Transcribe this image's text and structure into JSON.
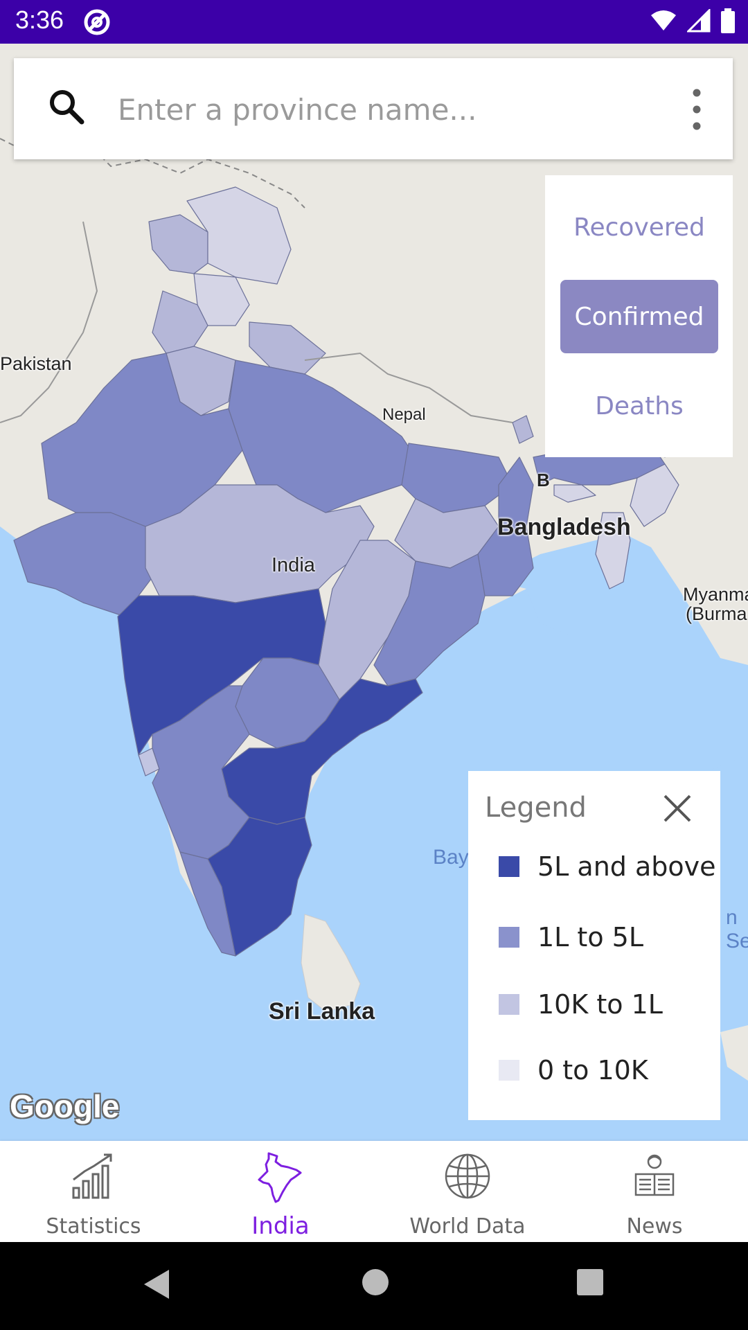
{
  "status_bar": {
    "time": "3:36"
  },
  "search": {
    "placeholder": "Enter a province name..."
  },
  "metric_toggle": {
    "options": [
      "Recovered",
      "Confirmed",
      "Deaths"
    ],
    "selected": "Confirmed"
  },
  "map": {
    "labels": {
      "pakistan": "Pakistan",
      "nepal": "Nepal",
      "india": "India",
      "bangladesh": "Bangladesh",
      "myanmar_1": "Myanma",
      "myanmar_2": "(Burma",
      "sri_lanka": "Sri Lanka",
      "bay": "Bay",
      "sea_fragment": "n Se",
      "bhutan_fragment": "B"
    },
    "provider_logo": "Google"
  },
  "legend": {
    "title": "Legend",
    "items": [
      {
        "label": "5L and above",
        "color": "#3a4aa8"
      },
      {
        "label": "1L to 5L",
        "color": "#8a92cc"
      },
      {
        "label": "10K to 1L",
        "color": "#c2c5e2"
      },
      {
        "label": "0 to 10K",
        "color": "#e8e9f3"
      }
    ]
  },
  "bottom_nav": {
    "items": [
      {
        "label": "Statistics",
        "icon": "bar-chart-icon"
      },
      {
        "label": "India",
        "icon": "india-map-icon"
      },
      {
        "label": "World Data",
        "icon": "globe-icon"
      },
      {
        "label": "News",
        "icon": "newspaper-reader-icon"
      }
    ],
    "active": "India"
  },
  "colors": {
    "status_bar": "#3c00a8",
    "accent": "#7d1fe0",
    "toggle_active": "#8b88c2",
    "water": "#aad3fb",
    "land": "#eae8e2"
  }
}
